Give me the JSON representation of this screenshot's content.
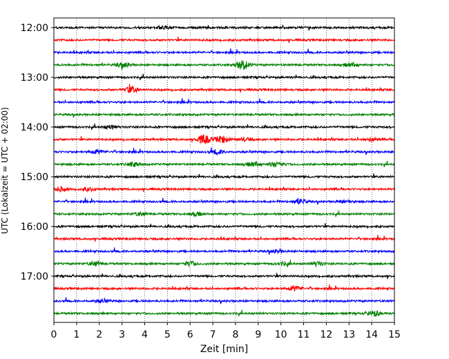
{
  "chart_data": {
    "type": "line",
    "title": "",
    "xlabel": "Zeit  [min]",
    "ylabel": "UTC (Lokalzeit = UTC + 02:00)",
    "xlim": [
      0,
      15
    ],
    "x_ticks": [
      "0",
      "1",
      "2",
      "3",
      "4",
      "5",
      "6",
      "7",
      "8",
      "9",
      "10",
      "11",
      "12",
      "13",
      "14",
      "15"
    ],
    "grid": "vertical-dotted",
    "row_interval_minutes": 15,
    "y_ticks": [
      {
        "row": 0,
        "label": "12:00"
      },
      {
        "row": 4,
        "label": "13:00"
      },
      {
        "row": 8,
        "label": "14:00"
      },
      {
        "row": 12,
        "label": "15:00"
      },
      {
        "row": 16,
        "label": "16:00"
      },
      {
        "row": 20,
        "label": "17:00"
      }
    ],
    "trace_colors": [
      "#000000",
      "#ff0000",
      "#0000ff",
      "#008000"
    ],
    "traces": [
      {
        "start": "12:00",
        "color": "#000000",
        "bursts": [
          [
            4.8,
            0.2
          ]
        ]
      },
      {
        "start": "12:15",
        "color": "#ff0000",
        "bursts": []
      },
      {
        "start": "12:30",
        "color": "#0000ff",
        "bursts": []
      },
      {
        "start": "12:45",
        "color": "#008000",
        "bursts": [
          [
            3.1,
            0.5
          ],
          [
            8.3,
            0.9
          ],
          [
            13.1,
            0.4
          ]
        ]
      },
      {
        "start": "13:00",
        "color": "#000000",
        "bursts": []
      },
      {
        "start": "13:15",
        "color": "#ff0000",
        "bursts": [
          [
            3.4,
            0.6
          ]
        ]
      },
      {
        "start": "13:30",
        "color": "#0000ff",
        "bursts": []
      },
      {
        "start": "13:45",
        "color": "#008000",
        "bursts": []
      },
      {
        "start": "14:00",
        "color": "#000000",
        "bursts": [
          [
            2.5,
            0.3
          ]
        ]
      },
      {
        "start": "14:15",
        "color": "#ff0000",
        "bursts": [
          [
            6.6,
            0.9
          ],
          [
            7.4,
            0.7
          ],
          [
            8.4,
            0.3
          ],
          [
            14.0,
            0.3
          ]
        ]
      },
      {
        "start": "14:30",
        "color": "#0000ff",
        "bursts": [
          [
            1.9,
            0.4
          ],
          [
            7.2,
            0.4
          ]
        ]
      },
      {
        "start": "14:45",
        "color": "#008000",
        "bursts": [
          [
            3.5,
            0.4
          ],
          [
            8.8,
            0.5
          ],
          [
            9.8,
            0.5
          ]
        ]
      },
      {
        "start": "15:00",
        "color": "#000000",
        "bursts": []
      },
      {
        "start": "15:15",
        "color": "#ff0000",
        "bursts": [
          [
            0.3,
            0.4
          ],
          [
            1.5,
            0.3
          ]
        ]
      },
      {
        "start": "15:30",
        "color": "#0000ff",
        "bursts": [
          [
            10.8,
            0.5
          ],
          [
            12.8,
            0.3
          ]
        ]
      },
      {
        "start": "15:45",
        "color": "#008000",
        "bursts": [
          [
            3.8,
            0.3
          ],
          [
            6.3,
            0.3
          ]
        ]
      },
      {
        "start": "16:00",
        "color": "#000000",
        "bursts": []
      },
      {
        "start": "16:15",
        "color": "#ff0000",
        "bursts": []
      },
      {
        "start": "16:30",
        "color": "#0000ff",
        "bursts": [
          [
            9.8,
            0.3
          ]
        ]
      },
      {
        "start": "16:45",
        "color": "#008000",
        "bursts": [
          [
            1.8,
            0.4
          ],
          [
            6.0,
            0.4
          ],
          [
            10.1,
            0.3
          ],
          [
            11.6,
            0.4
          ]
        ]
      },
      {
        "start": "17:00",
        "color": "#000000",
        "bursts": []
      },
      {
        "start": "17:15",
        "color": "#ff0000",
        "bursts": [
          [
            10.6,
            0.5
          ]
        ]
      },
      {
        "start": "17:30",
        "color": "#0000ff",
        "bursts": [
          [
            2.1,
            0.3
          ]
        ]
      },
      {
        "start": "17:45",
        "color": "#008000",
        "bursts": [
          [
            14.1,
            0.5
          ]
        ]
      }
    ]
  }
}
